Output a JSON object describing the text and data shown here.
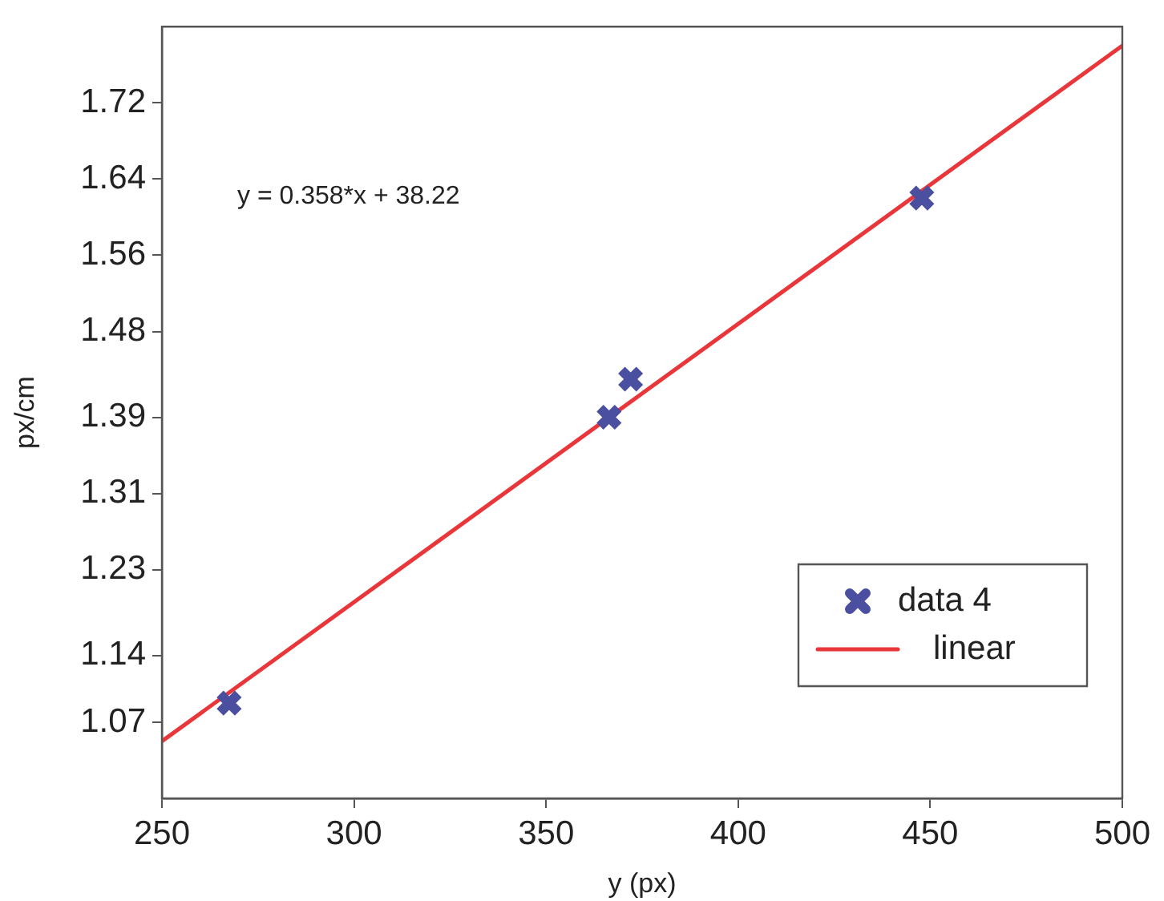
{
  "chart_data": {
    "type": "scatter",
    "xlabel": "y (px)",
    "ylabel": "px/cm",
    "xlim": [
      250,
      500
    ],
    "xticks": [
      250,
      300,
      350,
      400,
      450,
      500
    ],
    "ylim": [
      0.99,
      1.8
    ],
    "yticks": [
      1.07,
      1.14,
      1.23,
      1.31,
      1.39,
      1.48,
      1.56,
      1.64,
      1.72
    ],
    "series": [
      {
        "name": "data 4",
        "color": "#4a4fa0",
        "marker": "cross",
        "x": [
          267.5,
          366.4,
          372.0,
          447.8
        ],
        "values": [
          1.09,
          1.39,
          1.43,
          1.62
        ]
      },
      {
        "name": "linear",
        "type": "line",
        "color": "#e8363a",
        "marker": "none",
        "line_style": "solid",
        "x": [
          250,
          500
        ],
        "values": [
          1.05,
          1.78
        ]
      }
    ],
    "annotations": [
      "y = 0.358*x + 38.22"
    ],
    "grid": false,
    "legend": "bottom right"
  }
}
